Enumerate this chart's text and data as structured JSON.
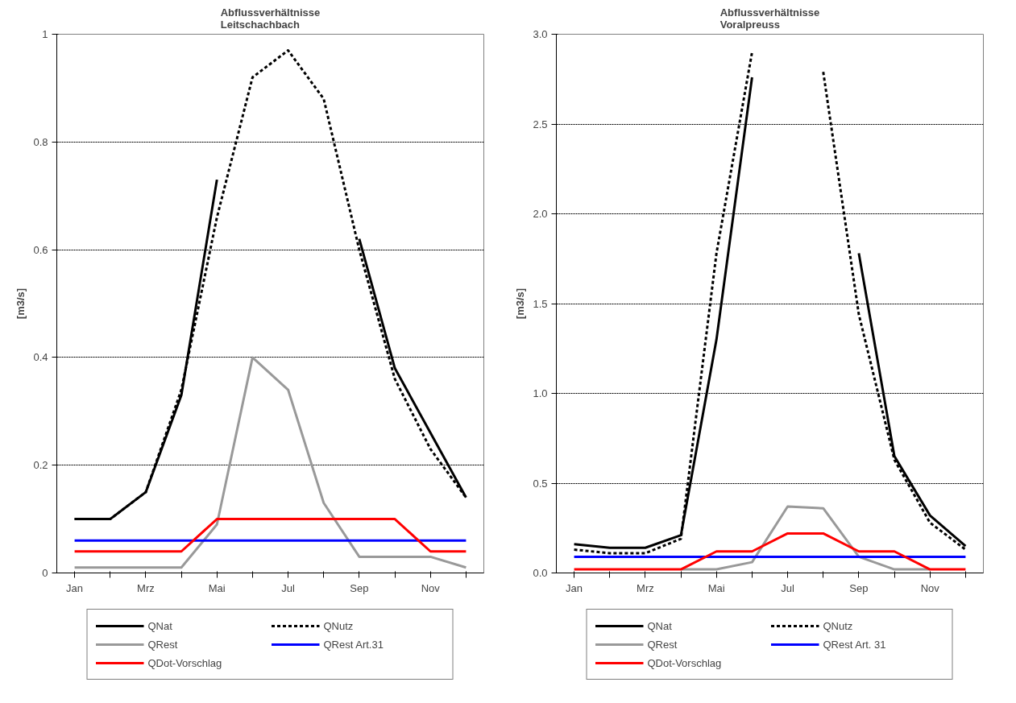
{
  "chart_data": [
    {
      "type": "line",
      "title": "Abflussverhältnisse\nLeitschachbach",
      "ylabel": "[m3/s]",
      "categories": [
        "Jan",
        null,
        "Mrz",
        null,
        "Mai",
        null,
        "Jul",
        null,
        "Sep",
        null,
        "Nov",
        null
      ],
      "ylim": [
        0,
        1
      ],
      "yticks": [
        0,
        0.2,
        0.4,
        0.6,
        0.8,
        1
      ],
      "grid": "y",
      "legend": "bottom",
      "series": [
        {
          "name": "QNat",
          "color": "#000000",
          "line_style": "solid",
          "values": [
            0.1,
            0.1,
            0.15,
            0.33,
            0.73,
            null,
            null,
            null,
            0.62,
            0.38,
            0.26,
            0.14
          ]
        },
        {
          "name": "QNutz",
          "color": "#000000",
          "line_style": "dashed",
          "values": [
            0.1,
            0.1,
            0.15,
            0.34,
            0.66,
            0.92,
            0.97,
            0.88,
            0.6,
            0.36,
            0.23,
            0.14
          ]
        },
        {
          "name": "QRest",
          "color": "#999999",
          "line_style": "solid",
          "values": [
            0.01,
            0.01,
            0.01,
            0.01,
            0.09,
            0.4,
            0.34,
            0.13,
            0.03,
            0.03,
            0.03,
            0.01
          ]
        },
        {
          "name": "QRest Art.31",
          "color": "#0000ff",
          "line_style": "solid",
          "values": [
            0.06,
            0.06,
            0.06,
            0.06,
            0.06,
            0.06,
            0.06,
            0.06,
            0.06,
            0.06,
            0.06,
            0.06
          ]
        },
        {
          "name": "QDot-Vorschlag",
          "color": "#ff0000",
          "line_style": "solid",
          "values": [
            0.04,
            0.04,
            0.04,
            0.04,
            0.1,
            0.1,
            0.1,
            0.1,
            0.1,
            0.1,
            0.04,
            0.04
          ]
        }
      ]
    },
    {
      "type": "line",
      "title": "Abflussverhältnisse\nVoralpreuss",
      "ylabel": "[m3/s]",
      "categories": [
        "Jan",
        null,
        "Mrz",
        null,
        "Mai",
        null,
        "Jul",
        null,
        "Sep",
        null,
        "Nov",
        null
      ],
      "ylim": [
        0,
        3
      ],
      "yticks": [
        {
          "value": 0,
          "label": "0.0"
        },
        {
          "value": 0.5,
          "label": "0.5"
        },
        {
          "value": 1,
          "label": "1.0"
        },
        {
          "value": 1.5,
          "label": "1.5"
        },
        {
          "value": 2,
          "label": "2.0"
        },
        {
          "value": 2.5,
          "label": "2.5"
        },
        {
          "value": 3,
          "label": "3.0"
        }
      ],
      "grid": "y",
      "legend": "bottom",
      "series": [
        {
          "name": "QNat",
          "color": "#000000",
          "line_style": "solid",
          "values": [
            0.16,
            0.14,
            0.14,
            0.21,
            1.3,
            2.76,
            null,
            null,
            1.78,
            0.65,
            0.32,
            0.15
          ]
        },
        {
          "name": "QNutz",
          "color": "#000000",
          "line_style": "dashed",
          "values": [
            0.13,
            0.11,
            0.11,
            0.19,
            1.78,
            2.9,
            null,
            2.79,
            1.44,
            0.63,
            0.28,
            0.13
          ]
        },
        {
          "name": "QRest",
          "color": "#999999",
          "line_style": "solid",
          "values": [
            null,
            null,
            null,
            0.02,
            0.02,
            0.06,
            0.37,
            0.36,
            0.09,
            0.02,
            0.02,
            null
          ]
        },
        {
          "name": "QRest Art. 31",
          "color": "#0000ff",
          "line_style": "solid",
          "values": [
            0.09,
            0.09,
            0.09,
            0.09,
            0.09,
            0.09,
            0.09,
            0.09,
            0.09,
            0.09,
            0.09,
            0.09
          ]
        },
        {
          "name": "QDot-Vorschlag",
          "color": "#ff0000",
          "line_style": "solid",
          "values": [
            0.02,
            0.02,
            0.02,
            0.02,
            0.12,
            0.12,
            0.22,
            0.22,
            0.12,
            0.12,
            0.02,
            0.02
          ]
        }
      ]
    }
  ]
}
